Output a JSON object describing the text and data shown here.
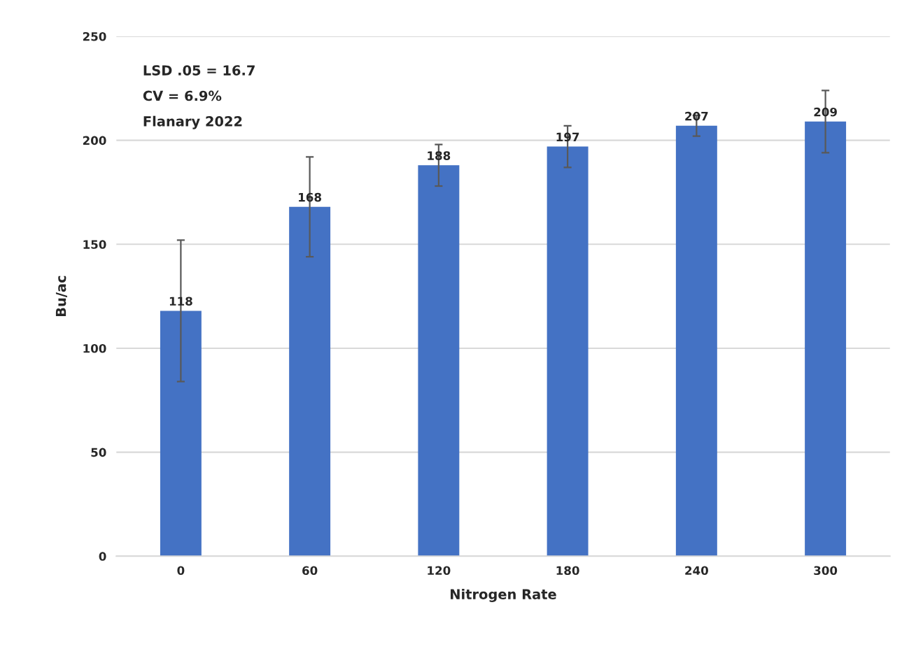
{
  "chart_data": {
    "type": "bar",
    "xlabel": "Nitrogen Rate",
    "ylabel": "Bu/ac",
    "categories": [
      "0",
      "60",
      "120",
      "180",
      "240",
      "300"
    ],
    "values": [
      118,
      168,
      188,
      197,
      207,
      209
    ],
    "errors": [
      34,
      24,
      10,
      10,
      5,
      15
    ],
    "color": "#4472c4",
    "data_labels": true,
    "ylim": [
      0,
      250
    ],
    "yticks": [
      0,
      50,
      100,
      150,
      200,
      250
    ],
    "grid": "y",
    "legend": false,
    "annotations": [
      "LSD .05 = 16.7",
      "CV = 6.9%",
      "Flanary 2022"
    ]
  }
}
